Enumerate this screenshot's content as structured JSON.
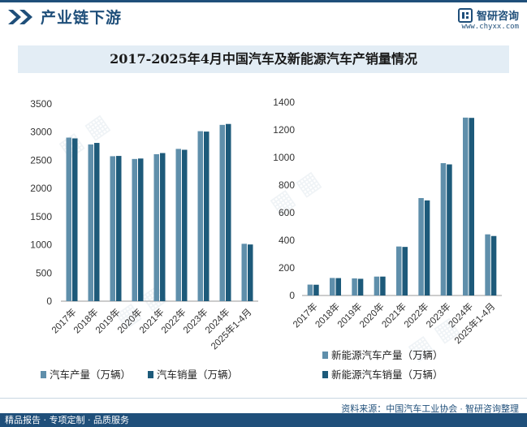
{
  "header": {
    "section_title": "产业链下游",
    "brand_name": "智研咨询",
    "brand_url": "www.chyxx.com"
  },
  "footer": {
    "source": "资料来源：中国汽车工业协会 · 智研咨询整理",
    "tagline": "精品报告 · 专项定制 · 品质服务"
  },
  "colors": {
    "brand": "#1f4f7a",
    "series_light": "#5f8fab",
    "series_dark": "#1d5a7a",
    "title_band": "#e3edf5"
  },
  "chart_data": [
    {
      "type": "bar",
      "title": "2017-2025年4月中国汽车及新能源汽车产销量情况",
      "categories": [
        "2017年",
        "2018年",
        "2019年",
        "2020年",
        "2021年",
        "2022年",
        "2023年",
        "2024年",
        "2025年1-4月"
      ],
      "series": [
        {
          "name": "汽车产量（万辆）",
          "values": [
            2902,
            2781,
            2572,
            2523,
            2608,
            2702,
            3016,
            3128,
            1018
          ]
        },
        {
          "name": "汽车销量（万辆）",
          "values": [
            2888,
            2808,
            2577,
            2531,
            2628,
            2686,
            3009,
            3144,
            1006
          ]
        }
      ],
      "ylim": [
        0,
        3500
      ],
      "yticks": [
        0,
        500,
        1000,
        1500,
        2000,
        2500,
        3000,
        3500
      ],
      "legend": "bottom"
    },
    {
      "type": "bar",
      "categories": [
        "2017年",
        "2018年",
        "2019年",
        "2020年",
        "2021年",
        "2022年",
        "2023年",
        "2024年",
        "2025年1-4月"
      ],
      "series": [
        {
          "name": "新能源汽车产量（万辆）",
          "values": [
            79,
            127,
            124,
            137,
            355,
            706,
            959,
            1289,
            443
          ]
        },
        {
          "name": "新能源汽车销量（万辆）",
          "values": [
            78,
            126,
            121,
            137,
            352,
            689,
            950,
            1287,
            431
          ]
        }
      ],
      "ylim": [
        0,
        1400
      ],
      "yticks": [
        0,
        200,
        400,
        600,
        800,
        1000,
        1200,
        1400
      ],
      "legend": "bottom"
    }
  ]
}
